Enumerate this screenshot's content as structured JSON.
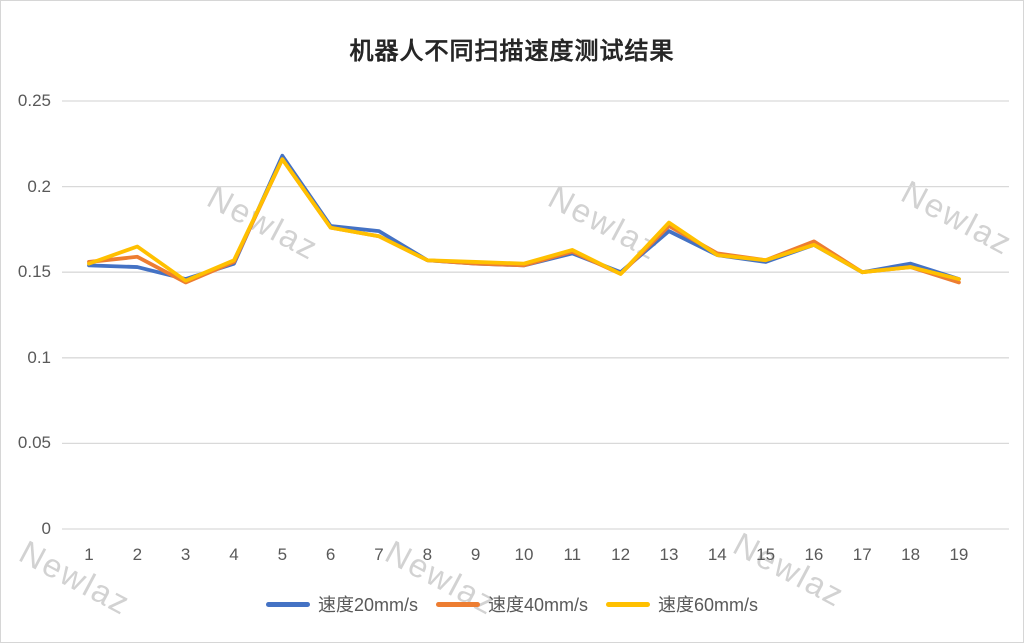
{
  "watermark": {
    "text": "Newlaz"
  },
  "chart_data": {
    "type": "line",
    "title": "机器人不同扫描速度测试结果",
    "categories": [
      "1",
      "2",
      "3",
      "4",
      "5",
      "6",
      "7",
      "8",
      "9",
      "10",
      "11",
      "12",
      "13",
      "14",
      "15",
      "16",
      "17",
      "18",
      "19"
    ],
    "series": [
      {
        "name": "速度20mm/s",
        "color": "#4472C4",
        "values": [
          0.154,
          0.153,
          0.146,
          0.155,
          0.218,
          0.177,
          0.174,
          0.157,
          0.155,
          0.154,
          0.161,
          0.15,
          0.174,
          0.16,
          0.156,
          0.166,
          0.15,
          0.155,
          0.146
        ]
      },
      {
        "name": "速度40mm/s",
        "color": "#ED7D31",
        "values": [
          0.156,
          0.159,
          0.144,
          0.156,
          0.216,
          0.176,
          0.171,
          0.157,
          0.155,
          0.154,
          0.162,
          0.149,
          0.177,
          0.161,
          0.157,
          0.168,
          0.15,
          0.153,
          0.144
        ]
      },
      {
        "name": "速度60mm/s",
        "color": "#FFC000",
        "values": [
          0.155,
          0.165,
          0.145,
          0.157,
          0.216,
          0.176,
          0.171,
          0.157,
          0.156,
          0.155,
          0.163,
          0.149,
          0.179,
          0.16,
          0.157,
          0.166,
          0.15,
          0.153,
          0.146
        ]
      }
    ],
    "xlabel": "",
    "ylabel": "",
    "ylim": [
      0,
      0.25
    ],
    "ytick_values": [
      0,
      0.05,
      0.1,
      0.15,
      0.2,
      0.25
    ],
    "ytick_labels": [
      "0",
      "0.05",
      "0.1",
      "0.15",
      "0.2",
      "0.25"
    ],
    "grid": "horizontal",
    "gridline_color": "#d9d9d9",
    "legend_position": "bottom"
  }
}
